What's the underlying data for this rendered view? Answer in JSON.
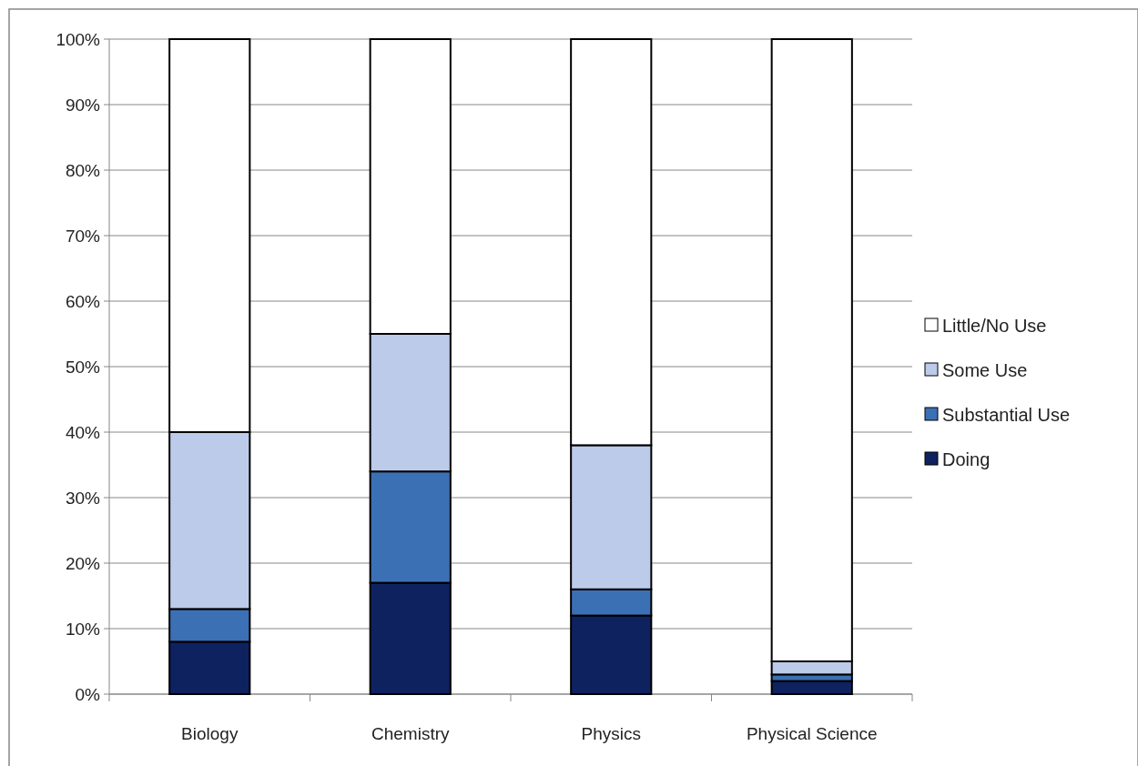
{
  "chart_data": {
    "type": "bar",
    "stacked": true,
    "categories": [
      "Biology",
      "Chemistry",
      "Physics",
      "Physical Science"
    ],
    "series": [
      {
        "name": "Doing",
        "color": "#0f2260",
        "values": [
          8,
          17,
          12,
          2
        ]
      },
      {
        "name": "Substantial Use",
        "color": "#3c70b4",
        "values": [
          5,
          17,
          4,
          1
        ]
      },
      {
        "name": "Some Use",
        "color": "#bccbea",
        "values": [
          27,
          21,
          22,
          2
        ]
      },
      {
        "name": "Little/No Use",
        "color": "#ffffff",
        "values": [
          60,
          45,
          62,
          95
        ]
      }
    ],
    "ylim": [
      0,
      100
    ],
    "yticks": [
      {
        "value": 0,
        "label": "0%"
      },
      {
        "value": 10,
        "label": "10%"
      },
      {
        "value": 20,
        "label": "20%"
      },
      {
        "value": 30,
        "label": "30%"
      },
      {
        "value": 40,
        "label": "40%"
      },
      {
        "value": 50,
        "label": "50%"
      },
      {
        "value": 60,
        "label": "60%"
      },
      {
        "value": 70,
        "label": "70%"
      },
      {
        "value": 80,
        "label": "80%"
      },
      {
        "value": 90,
        "label": "90%"
      },
      {
        "value": 100,
        "label": "100%"
      }
    ],
    "grid": "y",
    "legend": "right"
  }
}
